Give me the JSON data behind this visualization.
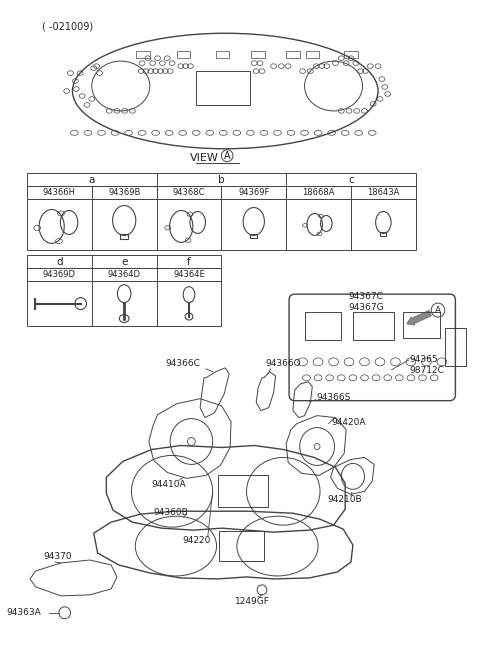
{
  "title_note": "( -021009)",
  "view_label": "VIEW",
  "view_circle_label": "A",
  "bg_color": "#ffffff",
  "line_color": "#444444",
  "table_header_row1": [
    "a",
    "b",
    "c"
  ],
  "table_header_row2": [
    "94366H",
    "94369B",
    "94368C",
    "94369F",
    "18668A",
    "18643A"
  ],
  "table_d_row": [
    "d",
    "e",
    "f"
  ],
  "table_d_parts": [
    "94369D",
    "94364D",
    "94364E"
  ],
  "right_labels_top": [
    "94367C",
    "94367G"
  ],
  "part_labels": [
    "94366C",
    "94366O",
    "94366S",
    "94365",
    "98712C",
    "94410A",
    "94220",
    "94420A",
    "94210B",
    "94360B",
    "94370",
    "94363A",
    "1249GF"
  ],
  "arrow_label": "A",
  "gray_arrow_color": "#777777",
  "table_bg": "#f5f5f5",
  "table_border": "#444444"
}
